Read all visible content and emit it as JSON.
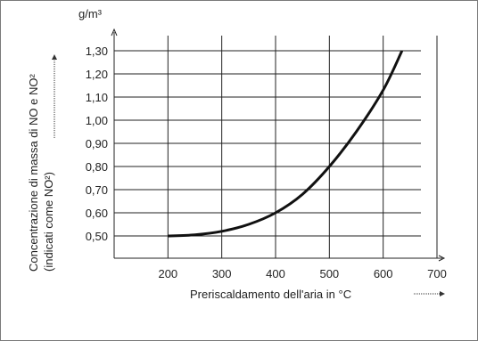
{
  "chart_data": {
    "type": "line",
    "title": "",
    "xlabel": "Preriscaldamento dell'aria in °C",
    "ylabel": "Concentrazione di massa di NO e NO²",
    "ylabel2": "(indicati come NO²)",
    "yunit": "g/m³",
    "xlim": [
      100,
      700
    ],
    "ylim": [
      0.4,
      1.3
    ],
    "xticks": [
      "200",
      "300",
      "400",
      "500",
      "600",
      "700"
    ],
    "yticks": [
      "1,30",
      "1,20",
      "1,10",
      "1,00",
      "0,90",
      "0,80",
      "0,70",
      "0,60",
      "0,50"
    ],
    "grid": true,
    "series": [
      {
        "x": [
          200,
          250,
          300,
          350,
          400,
          450,
          500,
          550,
          600,
          635
        ],
        "y": [
          0.5,
          0.505,
          0.52,
          0.55,
          0.6,
          0.68,
          0.8,
          0.95,
          1.13,
          1.3
        ]
      }
    ]
  }
}
